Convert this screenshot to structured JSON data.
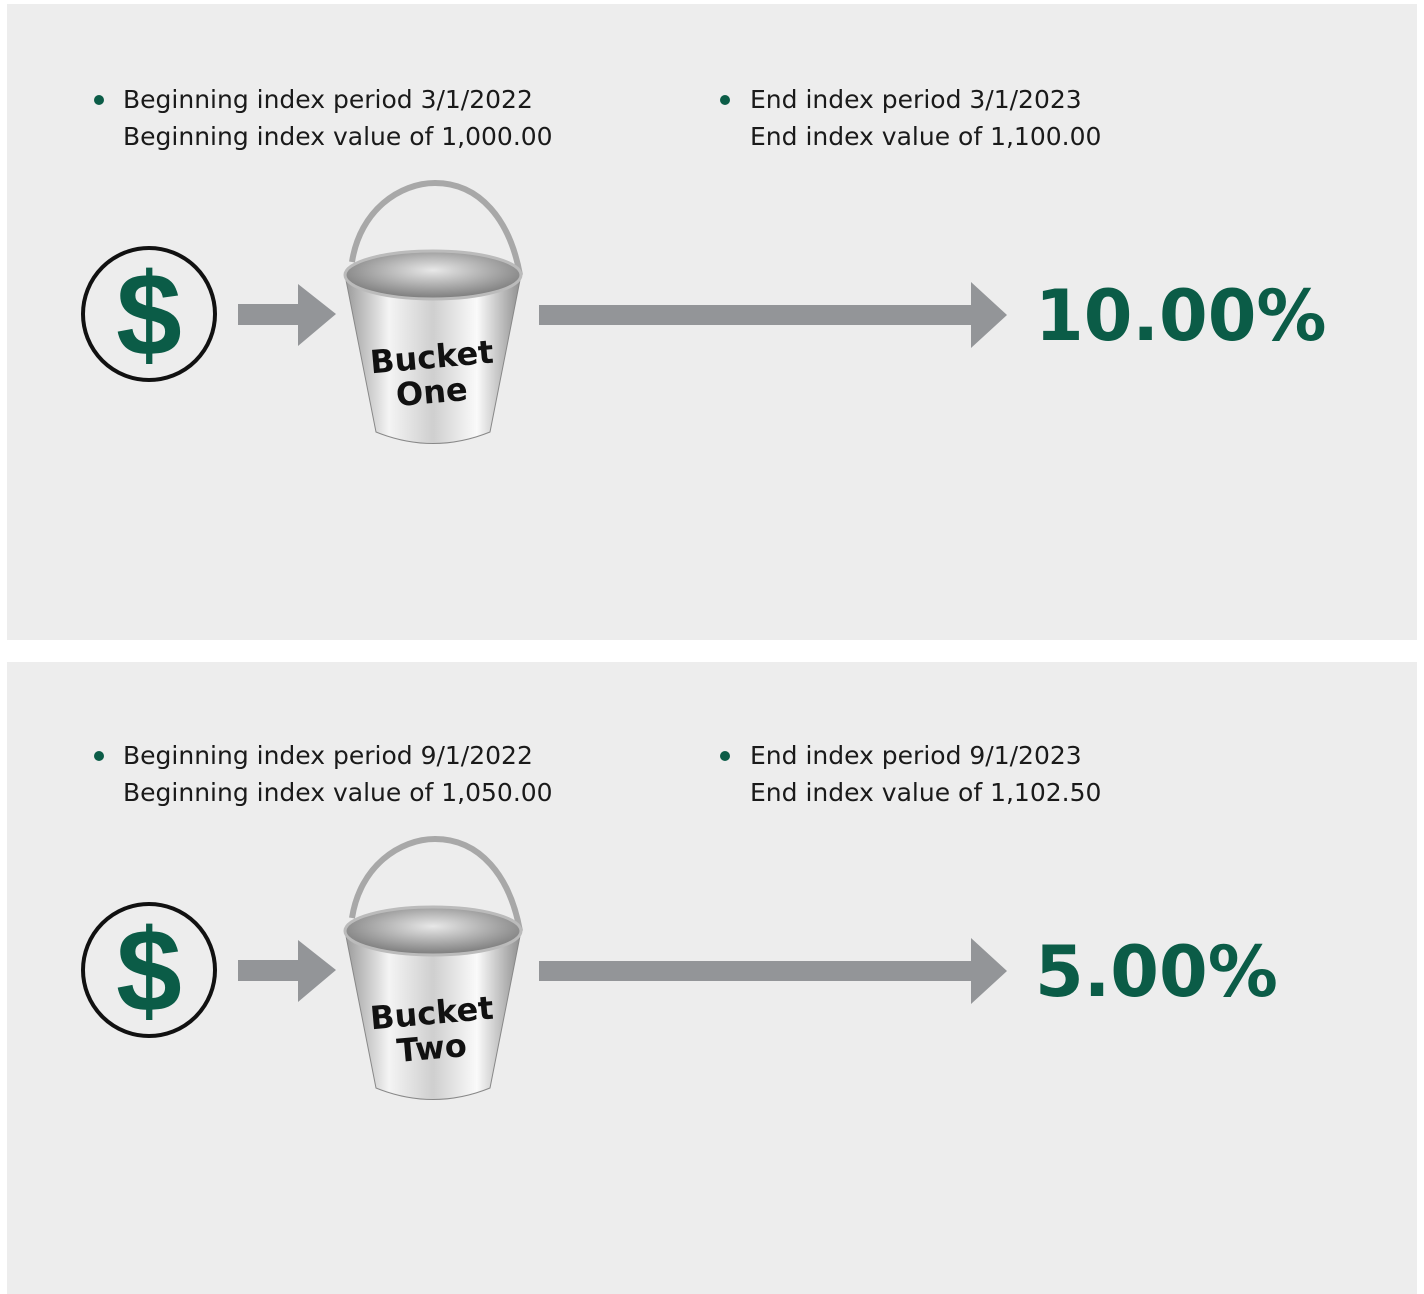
{
  "panels": [
    {
      "begin": {
        "period": "Beginning index period 3/1/2022",
        "value": "Beginning index value of 1,000.00"
      },
      "end": {
        "period": "End index period 3/1/2023",
        "value": "End index value of 1,100.00"
      },
      "dollar": "$",
      "bucket": [
        "Bucket",
        "One"
      ],
      "result": "10.00%"
    },
    {
      "begin": {
        "period": "Beginning index period 9/1/2022",
        "value": "Beginning index value of 1,050.00"
      },
      "end": {
        "period": "End index period 9/1/2023",
        "value": "End index value of 1,102.50"
      },
      "dollar": "$",
      "bucket": [
        "Bucket",
        "Two"
      ],
      "result": "5.00%"
    }
  ]
}
